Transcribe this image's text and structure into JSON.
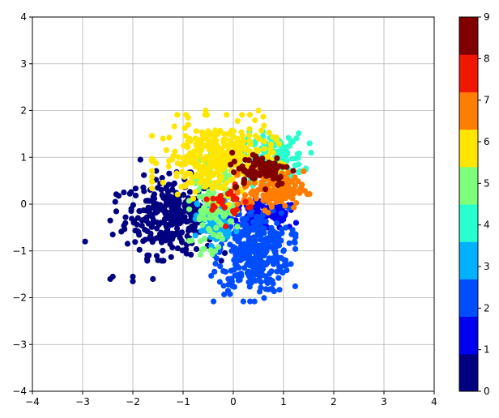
{
  "chart_data": {
    "type": "scatter",
    "title": "",
    "xlabel": "",
    "ylabel": "",
    "xlim": [
      -4,
      4
    ],
    "ylim": [
      -4,
      4
    ],
    "xticks": [
      "−4",
      "−3",
      "−2",
      "−1",
      "0",
      "1",
      "2",
      "3",
      "4"
    ],
    "yticks": [
      "−4",
      "−3",
      "−2",
      "−1",
      "0",
      "1",
      "2",
      "3",
      "4"
    ],
    "grid": true,
    "colormap": "jet",
    "colorbar": {
      "range": [
        0,
        9
      ],
      "ticks": [
        "0",
        "1",
        "2",
        "3",
        "4",
        "5",
        "6",
        "7",
        "8",
        "9"
      ],
      "colors": [
        "#000080",
        "#0000f1",
        "#004dff",
        "#00b1ff",
        "#29ffce",
        "#7dff7a",
        "#ffe600",
        "#ff7d00",
        "#f11600",
        "#800000"
      ]
    },
    "clusters": [
      {
        "label": 0,
        "color": "#000080",
        "center": [
          -1.25,
          -0.25
        ],
        "spread": [
          0.45,
          0.4
        ],
        "count": 320,
        "extra": [
          [
            -2.95,
            -0.8
          ],
          [
            -2.4,
            -1.55
          ],
          [
            -2.45,
            -1.6
          ],
          [
            -2.0,
            -1.55
          ],
          [
            -2.0,
            -1.65
          ],
          [
            -2.4,
            -0.65
          ],
          [
            -2.45,
            -0.35
          ],
          [
            -2.35,
            0.05
          ],
          [
            -1.85,
            0.95
          ],
          [
            -1.6,
            -1.6
          ],
          [
            -1.5,
            -1.2
          ]
        ]
      },
      {
        "label": 1,
        "color": "#0000f1",
        "center": [
          0.6,
          -0.25
        ],
        "spread": [
          0.35,
          0.15
        ],
        "count": 120,
        "extra": [
          [
            1.25,
            -0.4
          ]
        ]
      },
      {
        "label": 2,
        "color": "#004dff",
        "center": [
          0.4,
          -1.0
        ],
        "spread": [
          0.35,
          0.45
        ],
        "count": 380,
        "extra": []
      },
      {
        "label": 3,
        "color": "#00b1ff",
        "center": [
          -0.35,
          -0.35
        ],
        "spread": [
          0.18,
          0.25
        ],
        "count": 100,
        "extra": []
      },
      {
        "label": 4,
        "color": "#29ffce",
        "center": [
          0.8,
          1.0
        ],
        "spread": [
          0.3,
          0.25
        ],
        "count": 140,
        "extra": [
          [
            1.55,
            1.1
          ],
          [
            1.3,
            0.85
          ]
        ]
      },
      {
        "label": 5,
        "color": "#7dff7a",
        "center": [
          -0.4,
          0.0
        ],
        "spread": [
          0.2,
          0.45
        ],
        "count": 120,
        "extra": []
      },
      {
        "label": 6,
        "color": "#ffe600",
        "center": [
          -0.3,
          0.95
        ],
        "spread": [
          0.55,
          0.4
        ],
        "count": 350,
        "extra": [
          [
            -0.55,
            2.0
          ],
          [
            0.5,
            2.0
          ],
          [
            -1.4,
            1.4
          ]
        ]
      },
      {
        "label": 7,
        "color": "#ff7d00",
        "center": [
          0.8,
          0.3
        ],
        "spread": [
          0.3,
          0.2
        ],
        "count": 140,
        "extra": []
      },
      {
        "label": 8,
        "color": "#f11600",
        "center": [
          -0.05,
          0.0
        ],
        "spread": [
          0.2,
          0.2
        ],
        "count": 25,
        "extra": []
      },
      {
        "label": 9,
        "color": "#800000",
        "center": [
          0.55,
          0.75
        ],
        "spread": [
          0.3,
          0.18
        ],
        "count": 90,
        "extra": []
      }
    ]
  }
}
